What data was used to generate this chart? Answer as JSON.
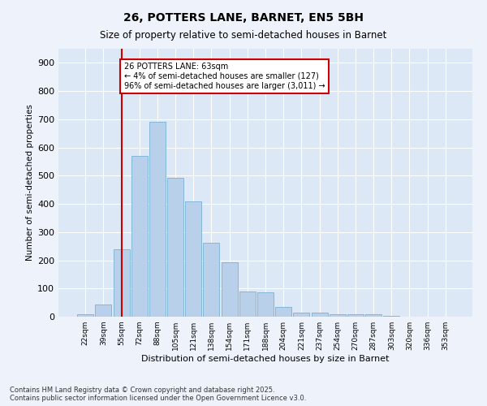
{
  "title1": "26, POTTERS LANE, BARNET, EN5 5BH",
  "title2": "Size of property relative to semi-detached houses in Barnet",
  "xlabel": "Distribution of semi-detached houses by size in Barnet",
  "ylabel": "Number of semi-detached properties",
  "categories": [
    "22sqm",
    "39sqm",
    "55sqm",
    "72sqm",
    "88sqm",
    "105sqm",
    "121sqm",
    "138sqm",
    "154sqm",
    "171sqm",
    "188sqm",
    "204sqm",
    "221sqm",
    "237sqm",
    "254sqm",
    "270sqm",
    "287sqm",
    "303sqm",
    "320sqm",
    "336sqm",
    "353sqm"
  ],
  "values": [
    10,
    42,
    238,
    570,
    692,
    492,
    410,
    262,
    193,
    90,
    85,
    35,
    14,
    15,
    8,
    8,
    10,
    2,
    0,
    1,
    0
  ],
  "bar_color": "#b8d0ea",
  "bar_edge_color": "#7aafd4",
  "vline_x": 2,
  "vline_color": "#cc0000",
  "annotation_text": "26 POTTERS LANE: 63sqm\n← 4% of semi-detached houses are smaller (127)\n96% of semi-detached houses are larger (3,011) →",
  "annotation_box_color": "#cc0000",
  "ylim": [
    0,
    950
  ],
  "yticks": [
    0,
    100,
    200,
    300,
    400,
    500,
    600,
    700,
    800,
    900
  ],
  "footer1": "Contains HM Land Registry data © Crown copyright and database right 2025.",
  "footer2": "Contains public sector information licensed under the Open Government Licence v3.0.",
  "bg_color": "#eef3fb",
  "plot_bg_color": "#dce8f5"
}
